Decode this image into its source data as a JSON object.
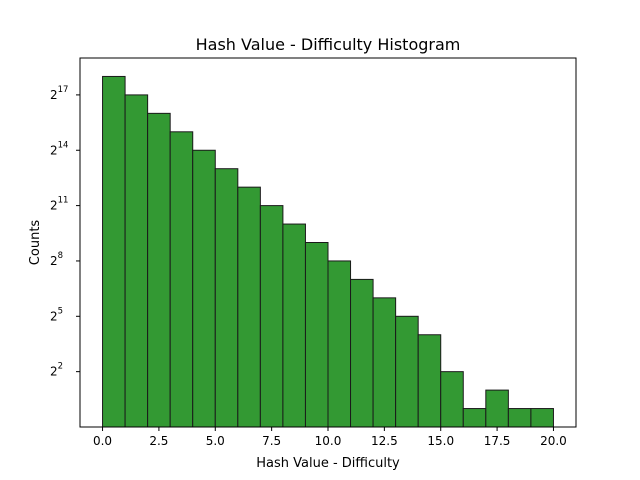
{
  "chart_data": {
    "type": "bar",
    "title": "Hash Value - Difficulty Histogram",
    "xlabel": "Hash Value - Difficulty",
    "ylabel": "Counts",
    "y_scale": "log2",
    "bin_edges": [
      0,
      1,
      2,
      3,
      4,
      5,
      6,
      7,
      8,
      9,
      10,
      11,
      12,
      13,
      14,
      15,
      16,
      17,
      18,
      19,
      20
    ],
    "values": [
      262144,
      131072,
      65536,
      32768,
      16384,
      8192,
      4096,
      2048,
      1024,
      512,
      256,
      128,
      64,
      32,
      16,
      4,
      1,
      2,
      1,
      1
    ],
    "xlim": [
      -1,
      21
    ],
    "ylim": [
      0.5,
      524288
    ],
    "x_ticks": [
      "0.0",
      "2.5",
      "5.0",
      "7.5",
      "10.0",
      "12.5",
      "15.0",
      "17.5",
      "20.0"
    ],
    "y_ticks": [
      {
        "base": "2",
        "exp": "2"
      },
      {
        "base": "2",
        "exp": "5"
      },
      {
        "base": "2",
        "exp": "8"
      },
      {
        "base": "2",
        "exp": "11"
      },
      {
        "base": "2",
        "exp": "14"
      },
      {
        "base": "2",
        "exp": "17"
      }
    ],
    "bar_color": "#339933",
    "edge_color": "#1a1a1a",
    "grid": false,
    "legend": "none"
  }
}
